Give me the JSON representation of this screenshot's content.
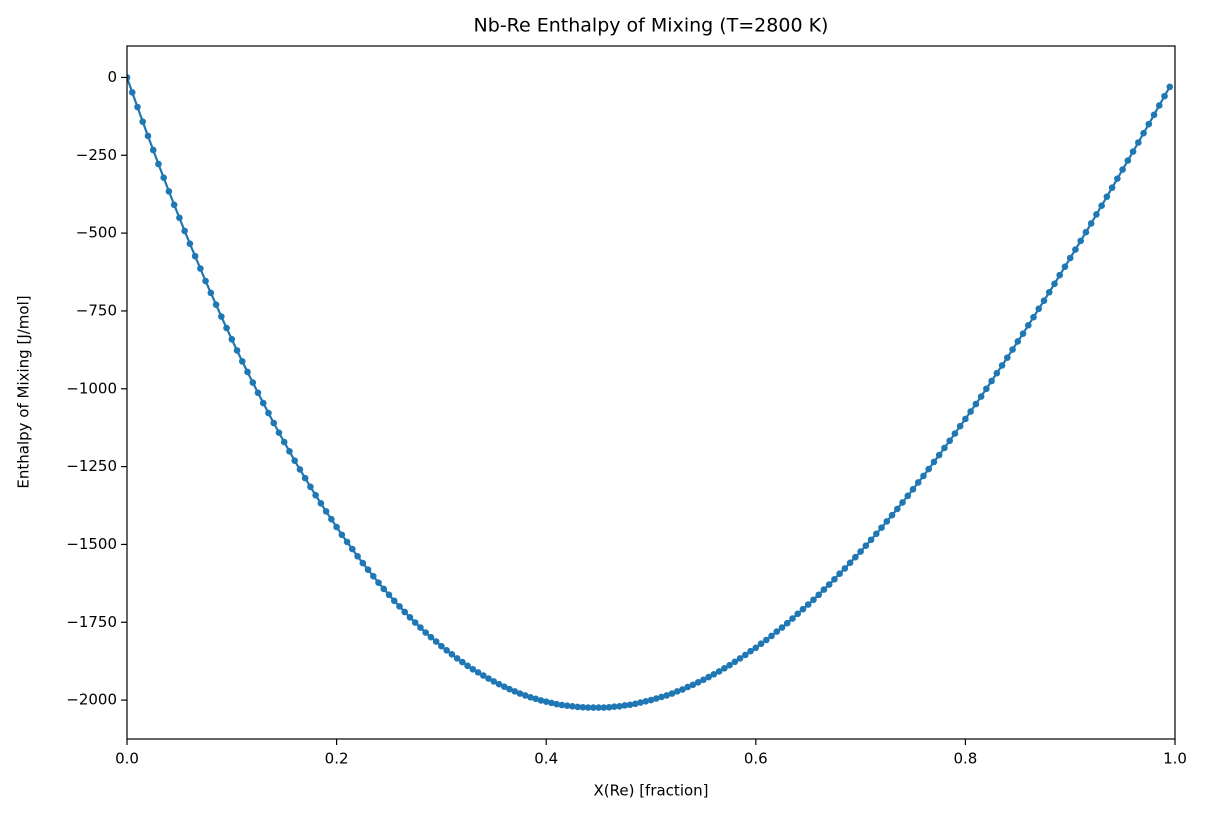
{
  "chart_data": {
    "type": "line",
    "title": "Nb-Re Enthalpy of Mixing (T=2800 K)",
    "xlabel": "X(Re) [fraction]",
    "ylabel": "Enthalpy of Mixing [J/mol]",
    "color": "#1f77b4",
    "markers": true,
    "xlim": [
      0,
      1
    ],
    "ylim": [
      -2125,
      101
    ],
    "xticks": [
      {
        "value": 0,
        "label": "0.0"
      },
      0.2,
      0.4,
      0.6,
      0.8,
      {
        "value": 1,
        "label": "1.0"
      }
    ],
    "yticks": [
      0,
      {
        "value": -250,
        "label": "−250"
      },
      {
        "value": -500,
        "label": "−500"
      },
      {
        "value": -750,
        "label": "−750"
      },
      {
        "value": -1000,
        "label": "−1000"
      },
      {
        "value": -1250,
        "label": "−1250"
      },
      {
        "value": -1500,
        "label": "−1500"
      },
      {
        "value": -1750,
        "label": "−1750"
      },
      {
        "value": -2000,
        "label": "−2000"
      }
    ],
    "x": [
      0,
      0.005,
      0.01,
      0.015,
      0.02,
      0.025,
      0.03,
      0.035,
      0.04,
      0.045,
      0.05,
      0.055,
      0.06,
      0.065,
      0.07,
      0.075,
      0.08,
      0.085,
      0.09,
      0.095,
      0.1,
      0.105,
      0.11,
      0.115,
      0.12,
      0.125,
      0.13,
      0.135,
      0.14,
      0.145,
      0.15,
      0.155,
      0.16,
      0.165,
      0.17,
      0.175,
      0.18,
      0.185,
      0.19,
      0.195,
      0.2,
      0.205,
      0.21,
      0.215,
      0.22,
      0.225,
      0.23,
      0.235,
      0.24,
      0.245,
      0.25,
      0.255,
      0.26,
      0.265,
      0.27,
      0.275,
      0.28,
      0.285,
      0.29,
      0.295,
      0.3,
      0.305,
      0.31,
      0.315,
      0.32,
      0.325,
      0.33,
      0.335,
      0.34,
      0.345,
      0.35,
      0.355,
      0.36,
      0.365,
      0.37,
      0.375,
      0.38,
      0.385,
      0.39,
      0.395,
      0.4,
      0.405,
      0.41,
      0.415,
      0.42,
      0.425,
      0.43,
      0.435,
      0.44,
      0.445,
      0.45,
      0.455,
      0.46,
      0.465,
      0.47,
      0.475,
      0.48,
      0.485,
      0.49,
      0.495,
      0.5,
      0.505,
      0.51,
      0.515,
      0.52,
      0.525,
      0.53,
      0.535,
      0.54,
      0.545,
      0.55,
      0.555,
      0.56,
      0.565,
      0.57,
      0.575,
      0.58,
      0.585,
      0.59,
      0.595,
      0.6,
      0.605,
      0.61,
      0.615,
      0.62,
      0.625,
      0.63,
      0.635,
      0.64,
      0.645,
      0.65,
      0.655,
      0.66,
      0.665,
      0.67,
      0.675,
      0.68,
      0.685,
      0.69,
      0.695,
      0.7,
      0.705,
      0.71,
      0.715,
      0.72,
      0.725,
      0.73,
      0.735,
      0.74,
      0.745,
      0.75,
      0.755,
      0.76,
      0.765,
      0.77,
      0.775,
      0.78,
      0.785,
      0.79,
      0.795,
      0.8,
      0.805,
      0.81,
      0.815,
      0.82,
      0.825,
      0.83,
      0.835,
      0.84,
      0.845,
      0.85,
      0.855,
      0.86,
      0.865,
      0.87,
      0.875,
      0.88,
      0.885,
      0.89,
      0.895,
      0.9,
      0.905,
      0.91,
      0.915,
      0.92,
      0.925,
      0.93,
      0.935,
      0.94,
      0.945,
      0.95,
      0.955,
      0.96,
      0.965,
      0.97,
      0.975,
      0.98,
      0.985,
      0.99,
      0.995
    ],
    "values": [
      0,
      -48,
      -95,
      -142,
      -188,
      -233,
      -278,
      -322,
      -366,
      -409,
      -451,
      -493,
      -534,
      -574,
      -614,
      -654,
      -692,
      -730,
      -768,
      -805,
      -841,
      -877,
      -912,
      -946,
      -980,
      -1013,
      -1046,
      -1078,
      -1110,
      -1141,
      -1171,
      -1201,
      -1231,
      -1259,
      -1287,
      -1315,
      -1342,
      -1368,
      -1394,
      -1419,
      -1444,
      -1469,
      -1492,
      -1515,
      -1538,
      -1560,
      -1581,
      -1602,
      -1623,
      -1643,
      -1662,
      -1681,
      -1699,
      -1717,
      -1734,
      -1751,
      -1767,
      -1783,
      -1798,
      -1812,
      -1827,
      -1840,
      -1853,
      -1866,
      -1878,
      -1890,
      -1901,
      -1911,
      -1921,
      -1931,
      -1940,
      -1949,
      -1957,
      -1965,
      -1972,
      -1979,
      -1985,
      -1991,
      -1996,
      -2001,
      -2005,
      -2009,
      -2013,
      -2016,
      -2018,
      -2020,
      -2022,
      -2023,
      -2024,
      -2024,
      -2024,
      -2024,
      -2023,
      -2021,
      -2020,
      -2017,
      -2015,
      -2012,
      -2008,
      -2004,
      -2000,
      -1995,
      -1990,
      -1985,
      -1979,
      -1972,
      -1966,
      -1958,
      -1951,
      -1943,
      -1935,
      -1926,
      -1917,
      -1908,
      -1898,
      -1888,
      -1877,
      -1866,
      -1855,
      -1843,
      -1832,
      -1819,
      -1807,
      -1794,
      -1780,
      -1767,
      -1753,
      -1738,
      -1723,
      -1708,
      -1693,
      -1678,
      -1662,
      -1645,
      -1629,
      -1612,
      -1594,
      -1577,
      -1559,
      -1541,
      -1523,
      -1504,
      -1485,
      -1466,
      -1446,
      -1426,
      -1406,
      -1386,
      -1365,
      -1344,
      -1323,
      -1301,
      -1280,
      -1258,
      -1235,
      -1213,
      -1190,
      -1167,
      -1144,
      -1120,
      -1097,
      -1073,
      -1049,
      -1025,
      -1000,
      -975,
      -950,
      -925,
      -900,
      -874,
      -848,
      -823,
      -796,
      -770,
      -743,
      -717,
      -690,
      -663,
      -635,
      -608,
      -580,
      -553,
      -525,
      -497,
      -469,
      -440,
      -412,
      -383,
      -354,
      -325,
      -296,
      -267,
      -238,
      -209,
      -179,
      -150,
      -120,
      -90,
      -60,
      -30
    ]
  }
}
